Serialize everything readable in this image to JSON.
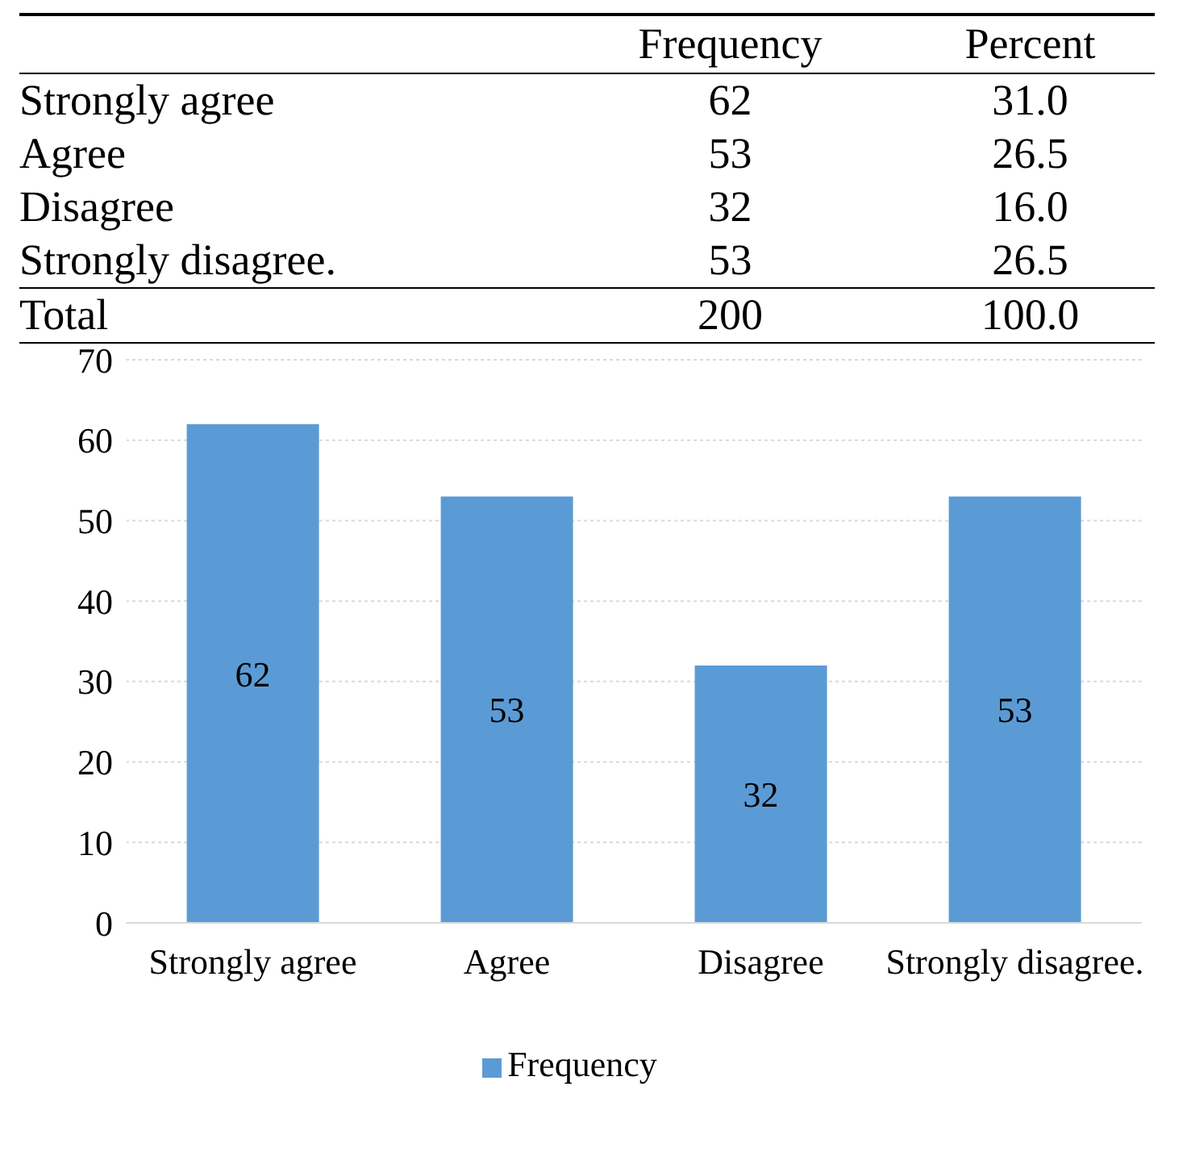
{
  "chart_data": [
    {
      "type": "other",
      "categories": [
        "Strongly agree",
        "Agree",
        "Disagree",
        "Strongly disagree.",
        "Total"
      ],
      "series": [
        {
          "name": "Frequency",
          "values": [
            62,
            53,
            32,
            53,
            200
          ]
        },
        {
          "name": "Percent",
          "values": [
            31.0,
            26.5,
            16.0,
            26.5,
            100.0
          ],
          "value_labels": [
            "31.0",
            "26.5",
            "16.0",
            "26.5",
            "100.0"
          ]
        }
      ],
      "data_labels": true
    },
    {
      "type": "bar",
      "categories": [
        "Strongly agree",
        "Agree",
        "Disagree",
        "Strongly disagree."
      ],
      "series": [
        {
          "name": "Frequency",
          "color": "#5b9bd5",
          "values": [
            62,
            53,
            32,
            53
          ]
        }
      ],
      "ylim": [
        0,
        70
      ],
      "yticks": [
        0,
        10,
        20,
        30,
        40,
        50,
        60,
        70
      ],
      "grid": "y",
      "data_labels": true,
      "legend": "bottom"
    }
  ]
}
